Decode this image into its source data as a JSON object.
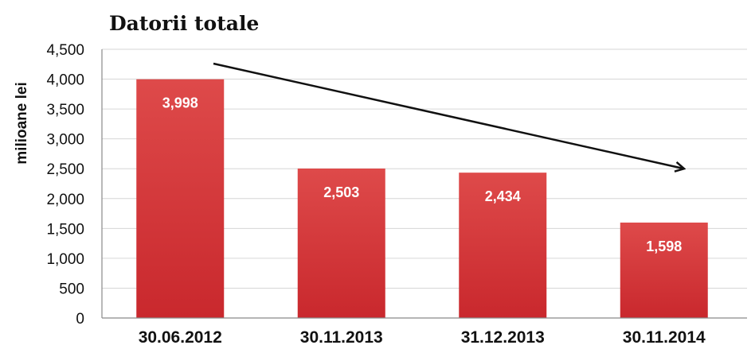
{
  "chart_data": {
    "type": "bar",
    "title": "Datorii totale",
    "ylabel": "milioane lei",
    "xlabel": "",
    "categories": [
      "30.06.2012",
      "30.11.2013",
      "31.12.2013",
      "30.11.2014"
    ],
    "values": [
      3998,
      2503,
      2434,
      1598
    ],
    "data_labels": [
      "3,998",
      "2,503",
      "2,434",
      "1,598"
    ],
    "ylim": [
      0,
      4500
    ],
    "yticks": [
      0,
      500,
      1000,
      1500,
      2000,
      2500,
      3000,
      3500,
      4000,
      4500
    ],
    "ytick_labels": [
      "0",
      "500",
      "1,000",
      "1,500",
      "2,000",
      "2,500",
      "3,000",
      "3,500",
      "4,000",
      "4,500"
    ],
    "grid": true,
    "bar_color": "#c9282d",
    "bar_color_light": "#de4a4a",
    "annotations": [
      {
        "type": "trend-arrow",
        "direction": "down",
        "from_category": 0,
        "to_category": 3
      }
    ]
  }
}
